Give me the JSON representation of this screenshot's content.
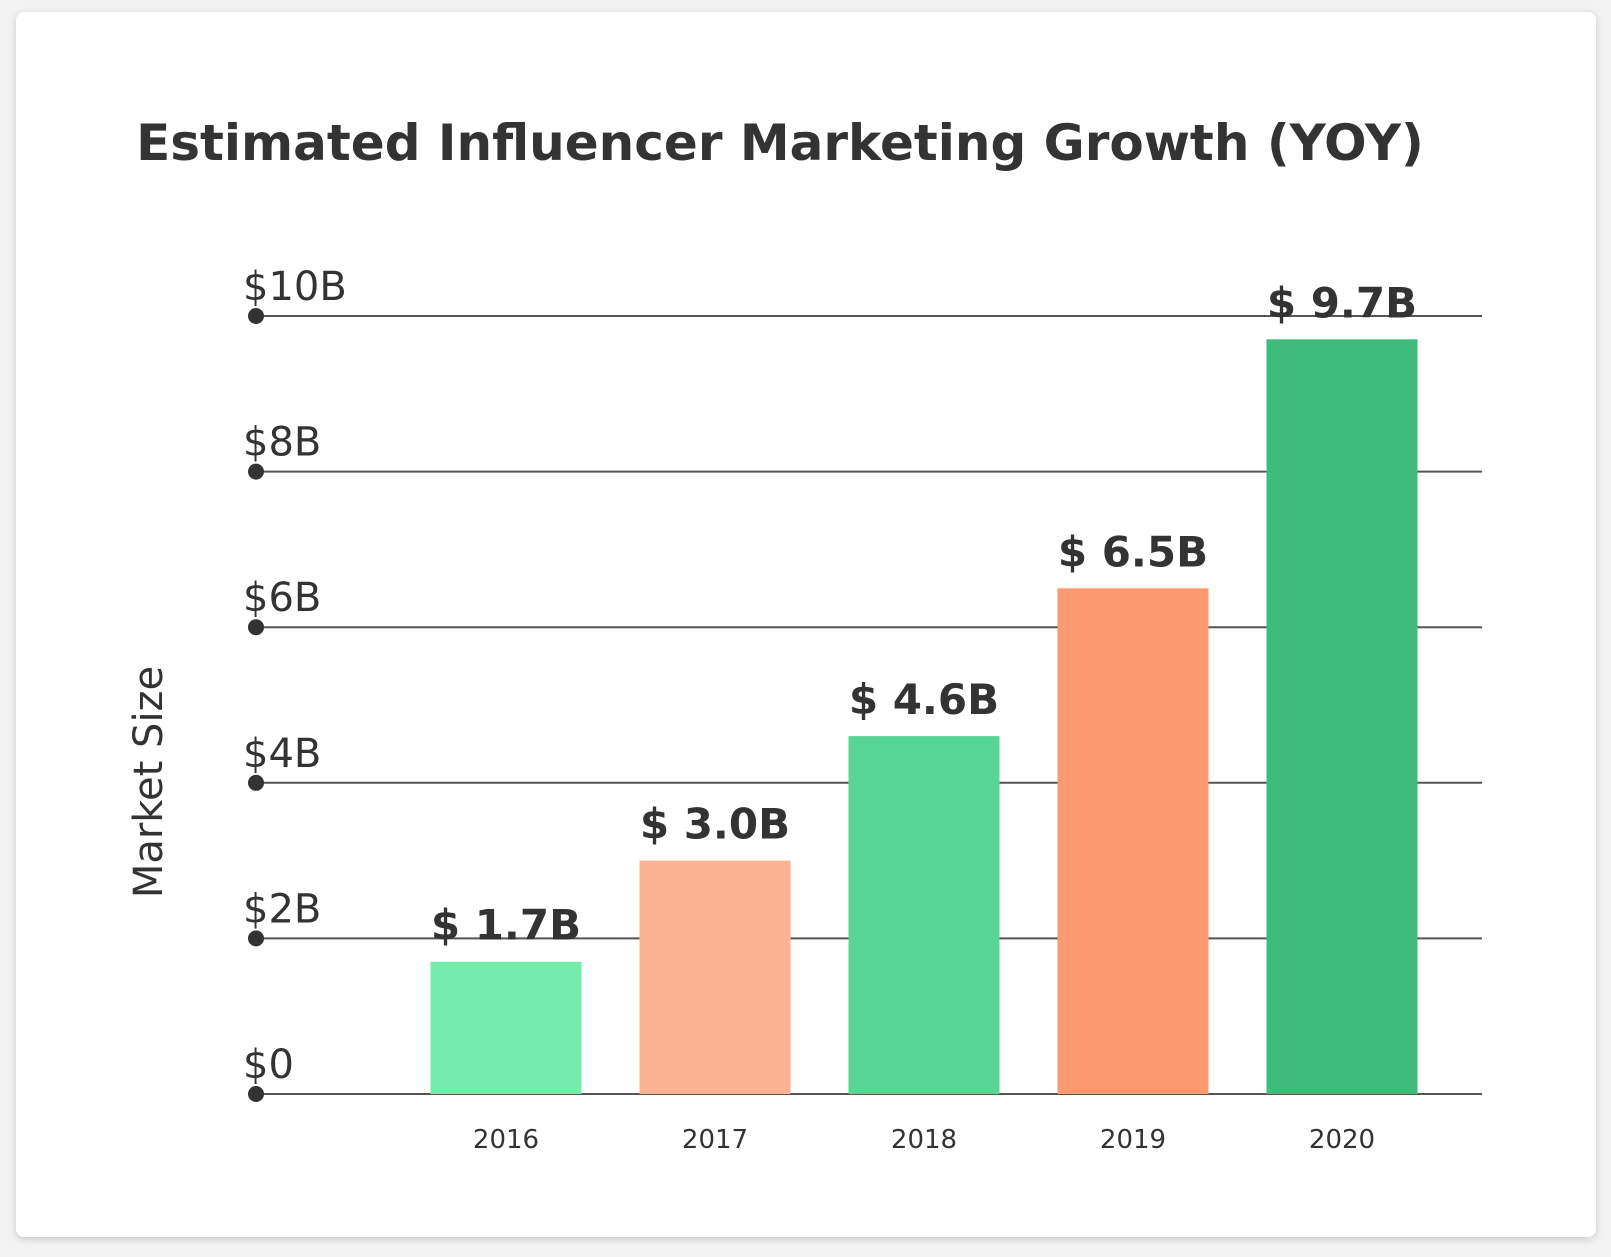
{
  "chart_data": {
    "type": "bar",
    "title": "Estimated Influencer Marketing Growth (YOY)",
    "xlabel": "",
    "ylabel": "Market Size",
    "categories": [
      "2016",
      "2017",
      "2018",
      "2019",
      "2020"
    ],
    "values": [
      1.7,
      3.0,
      4.6,
      6.5,
      9.7
    ],
    "value_labels": [
      "$ 1.7B",
      "$ 3.0B",
      "$ 4.6B",
      "$ 6.5B",
      "$ 9.7B"
    ],
    "bar_colors": [
      "#74edac",
      "#fcb393",
      "#58d493",
      "#fb9a6f",
      "#3fbb7a"
    ],
    "ylim": [
      0,
      10
    ],
    "yticks": [
      0,
      2,
      4,
      6,
      8,
      10
    ],
    "ytick_labels": [
      "$0",
      "$2B",
      "$4B",
      "$6B",
      "$8B",
      "$10B"
    ],
    "grid": true,
    "legend": "none",
    "grid_color": "#555555",
    "text_color": "#333333"
  }
}
